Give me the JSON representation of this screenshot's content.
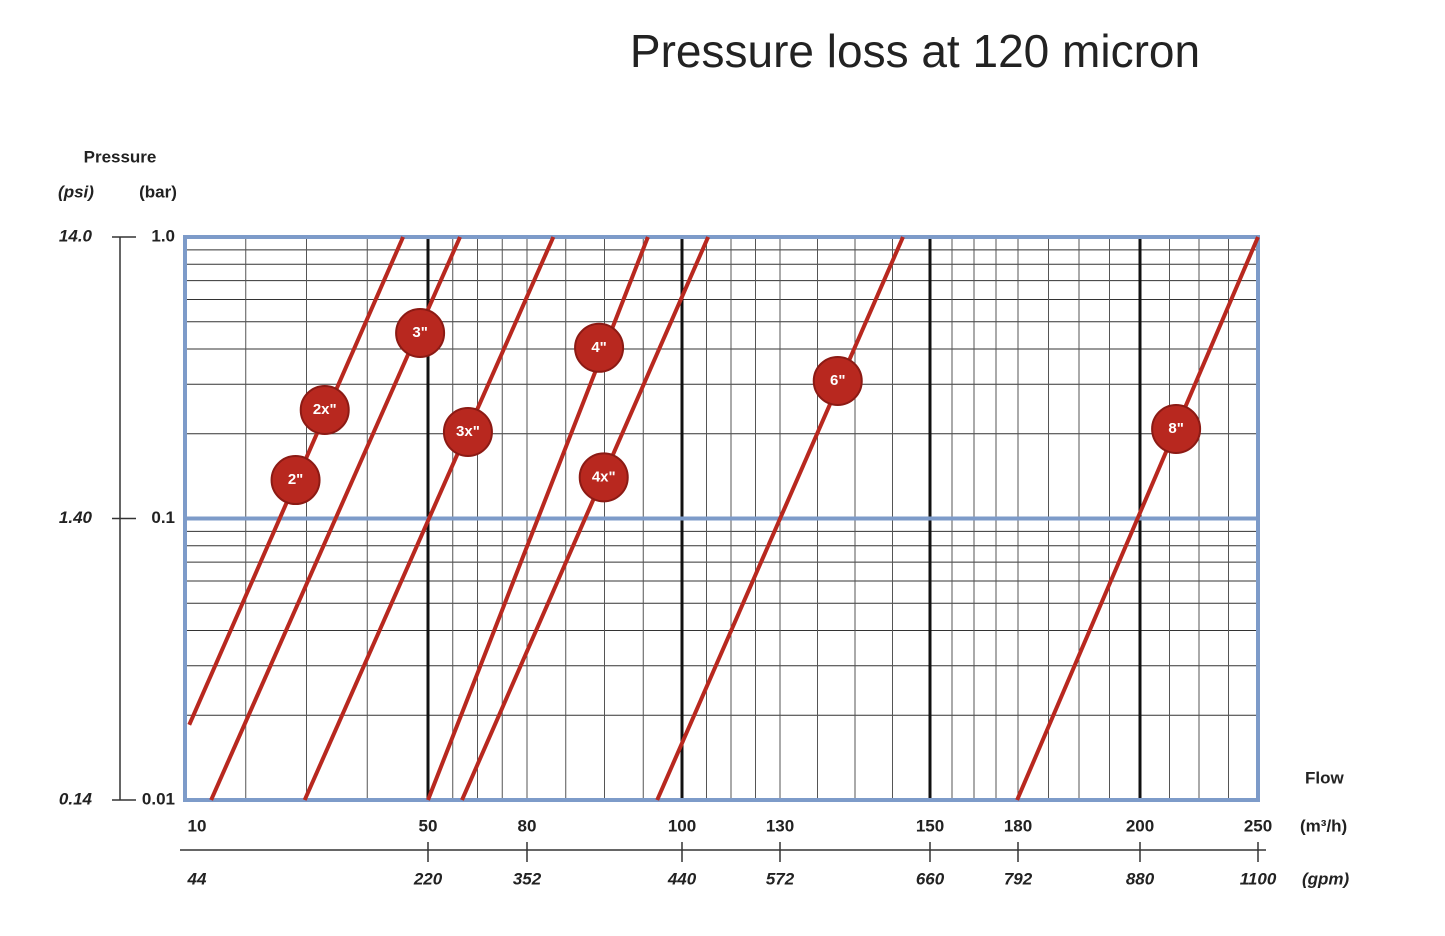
{
  "chart_data": {
    "type": "line",
    "title": "Pressure loss at 120 micron",
    "y_label": "Pressure",
    "y_unit": "(bar)",
    "y2_unit": "(psi)",
    "x_label": "Flow",
    "x_unit": "(m³/h)",
    "x2_unit": "(gpm)",
    "log_y": true,
    "grid": true,
    "color": "#b8281f",
    "xlim": [
      10,
      250
    ],
    "xticks": [
      10,
      50,
      80,
      100,
      130,
      150,
      180,
      200,
      250
    ],
    "x2ticks": [
      44,
      220,
      352,
      440,
      572,
      660,
      792,
      880,
      1100
    ],
    "ylim": [
      0.01,
      1
    ],
    "yticks": [
      0.01,
      0.1,
      {
        "value": 1,
        "label": "1.0"
      }
    ],
    "y2lim": [
      0.14,
      14
    ],
    "y2ticks": [
      0.14,
      {
        "value": 1.4,
        "label": "1.40"
      },
      {
        "value": 14,
        "label": "14.0"
      }
    ],
    "series": [
      {
        "x": [
          10.7,
          45.9
        ],
        "values": [
          0.0185,
          1
        ],
        "labels": [
          {
            "text": "2\"",
            "x": 28.2,
            "y": 0.137
          },
          {
            "text": "2x\"",
            "x": 33,
            "y": 0.243
          }
        ]
      },
      {
        "x": [
          14.3,
          59.7
        ],
        "values": [
          0.01,
          1
        ],
        "labels": [
          {
            "text": "3\"",
            "x": 48.7,
            "y": 0.456
          }
        ]
      },
      {
        "x": [
          29.7,
          83.4
        ],
        "values": [
          0.01,
          1
        ],
        "labels": [
          {
            "text": "3x\"",
            "x": 62.1,
            "y": 0.203
          }
        ]
      },
      {
        "x": [
          50,
          95.6
        ],
        "values": [
          0.01,
          1
        ],
        "labels": [
          {
            "text": "4\"",
            "x": 89.3,
            "y": 0.404
          }
        ]
      },
      {
        "x": [
          60.3,
          108
        ],
        "values": [
          0.01,
          1
        ],
        "labels": [
          {
            "text": "4x\"",
            "x": 89.9,
            "y": 0.14
          }
        ]
      },
      {
        "x": [
          96.8,
          146.4
        ],
        "values": [
          0.01,
          1
        ],
        "labels": [
          {
            "text": "6\"",
            "x": 137.7,
            "y": 0.308
          }
        ]
      },
      {
        "x": [
          179.7,
          250
        ],
        "values": [
          0.01,
          1
        ],
        "labels": [
          {
            "text": "8\"",
            "x": 215.3,
            "y": 0.208
          }
        ]
      }
    ]
  }
}
